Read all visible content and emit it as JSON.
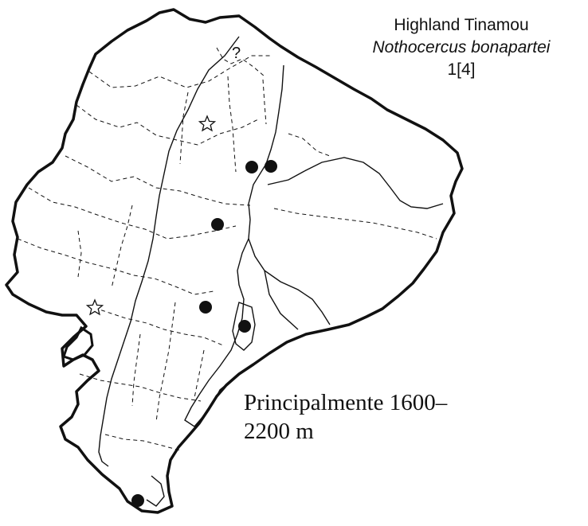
{
  "species": {
    "common_name": "Highland Tinamou",
    "scientific_name": "Nothocercus bonapartei",
    "record_code": "1[4]"
  },
  "elevation_note": {
    "line1": "Principalmente 1600–",
    "line2": "2200 m"
  },
  "uncertain_marker": "?",
  "legend_symbols": {
    "records": "filled-circle",
    "capitals": "open-star"
  },
  "colors": {
    "ink": "#111111",
    "background": "#ffffff"
  }
}
